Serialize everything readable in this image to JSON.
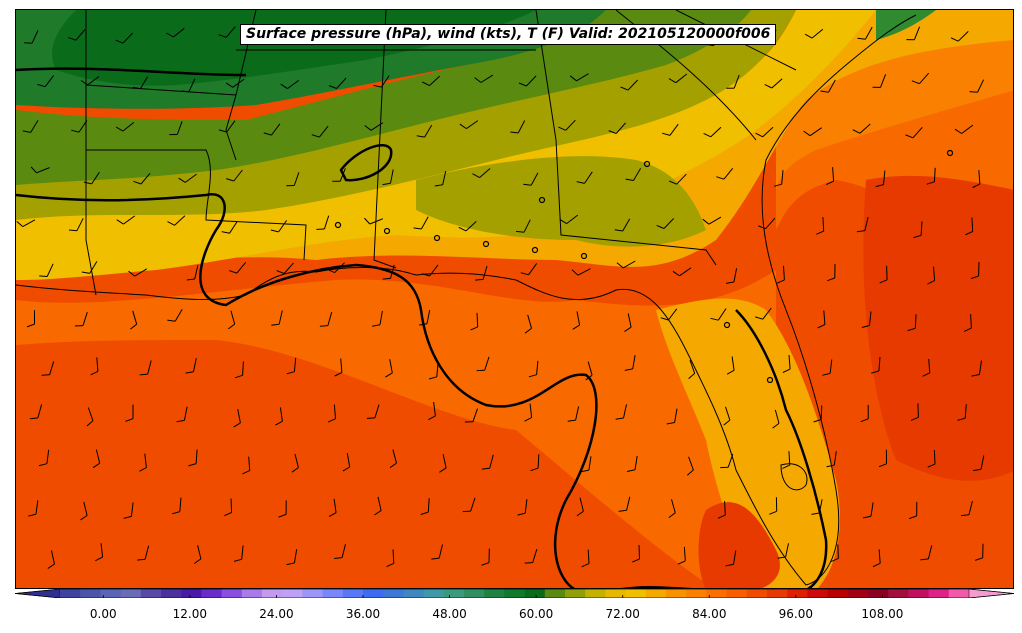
{
  "title": "Surface pressure (hPa), wind (kts), T (F) Valid: 202105120000f006",
  "colorbar": {
    "ticks": [
      "0.00",
      "12.00",
      "24.00",
      "36.00",
      "48.00",
      "60.00",
      "72.00",
      "84.00",
      "96.00",
      "108.00"
    ],
    "min": -6,
    "max": 120,
    "interval": 3,
    "colors": [
      "#2e2f8f",
      "#3f43a0",
      "#4d55ab",
      "#5a63b5",
      "#6a6cb8",
      "#5a4aa8",
      "#4d2fa0",
      "#4a1aa6",
      "#6a2bc8",
      "#8a4ee0",
      "#a77be8",
      "#c49af0",
      "#bfa0f5",
      "#9c96f8",
      "#7a87fa",
      "#5a78f5",
      "#3e6cf0",
      "#3d78d8",
      "#3f87c0",
      "#3f98a8",
      "#3a9a7e",
      "#2f8f5f",
      "#1f8240",
      "#0f7a2a",
      "#0a6b1a",
      "#5a8a10",
      "#8fa00a",
      "#c5b000",
      "#e6b800",
      "#f0bf00",
      "#f5a800",
      "#f79200",
      "#f98000",
      "#fa6f00",
      "#f85e00",
      "#f04c00",
      "#e63a00",
      "#dc2000",
      "#cc0a0a",
      "#b80000",
      "#a00010",
      "#8a0020",
      "#a0103a",
      "#c01060",
      "#e0208a",
      "#f05aa8",
      "#f59bd0"
    ]
  },
  "fields": {
    "units_temperature": "F",
    "units_pressure": "hPa",
    "units_wind": "kts"
  }
}
